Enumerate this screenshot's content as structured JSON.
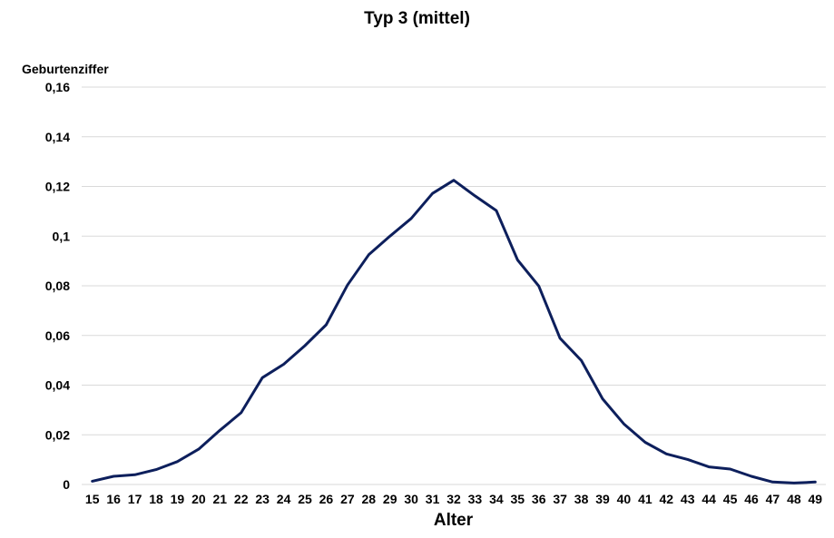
{
  "chart_data": {
    "type": "line",
    "title": "Typ 3 (mittel)",
    "xlabel": "Alter",
    "ylabel": "Geburtenziffer",
    "x": [
      15,
      16,
      17,
      18,
      19,
      20,
      21,
      22,
      23,
      24,
      25,
      26,
      27,
      28,
      29,
      30,
      31,
      32,
      33,
      34,
      35,
      36,
      37,
      38,
      39,
      40,
      41,
      42,
      43,
      44,
      45,
      46,
      47,
      48,
      49
    ],
    "ytick_labels": [
      "0",
      "0,02",
      "0,04",
      "0,06",
      "0,08",
      "0,1",
      "0,12",
      "0,14",
      "0,16"
    ],
    "ylim": [
      0,
      0.16
    ],
    "grid": true,
    "series": [
      {
        "color": "#0d1f5c",
        "values": [
          0.0013,
          0.0033,
          0.0039,
          0.006,
          0.0092,
          0.0142,
          0.0218,
          0.0289,
          0.043,
          0.0484,
          0.0559,
          0.0643,
          0.0803,
          0.0925,
          0.1,
          0.1071,
          0.1172,
          0.1225,
          0.1162,
          0.1103,
          0.0904,
          0.0799,
          0.0589,
          0.0499,
          0.0345,
          0.0244,
          0.017,
          0.0123,
          0.0101,
          0.0071,
          0.0062,
          0.0033,
          0.001,
          0.0006,
          0.001
        ]
      }
    ]
  }
}
